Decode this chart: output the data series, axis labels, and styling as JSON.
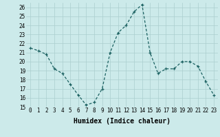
{
  "xlabel": "Humidex (Indice chaleur)",
  "x": [
    0,
    1,
    2,
    3,
    4,
    5,
    6,
    7,
    8,
    9,
    10,
    11,
    12,
    13,
    14,
    15,
    16,
    17,
    18,
    19,
    20,
    21,
    22,
    23
  ],
  "y": [
    21.5,
    21.2,
    20.8,
    19.2,
    18.7,
    17.5,
    16.3,
    15.2,
    15.5,
    17.0,
    21.0,
    23.2,
    24.0,
    25.5,
    26.3,
    21.0,
    18.7,
    19.2,
    19.2,
    20.0,
    20.0,
    19.5,
    17.8,
    16.3
  ],
  "bg_color": "#cceaea",
  "grid_color": "#aacece",
  "line_color": "#1a6060",
  "marker": "+",
  "ylim": [
    15,
    26.5
  ],
  "yticks": [
    15,
    16,
    17,
    18,
    19,
    20,
    21,
    22,
    23,
    24,
    25,
    26
  ],
  "xlim": [
    -0.5,
    23.5
  ],
  "xticks": [
    0,
    1,
    2,
    3,
    4,
    5,
    6,
    7,
    8,
    9,
    10,
    11,
    12,
    13,
    14,
    15,
    16,
    17,
    18,
    19,
    20,
    21,
    22,
    23
  ],
  "xtick_labels": [
    "0",
    "1",
    "2",
    "3",
    "4",
    "5",
    "6",
    "7",
    "8",
    "9",
    "10",
    "11",
    "12",
    "13",
    "14",
    "15",
    "16",
    "17",
    "18",
    "19",
    "20",
    "21",
    "22",
    "23"
  ],
  "line_width": 1.0,
  "marker_size": 3,
  "tick_fontsize": 5.5,
  "label_fontsize": 7
}
